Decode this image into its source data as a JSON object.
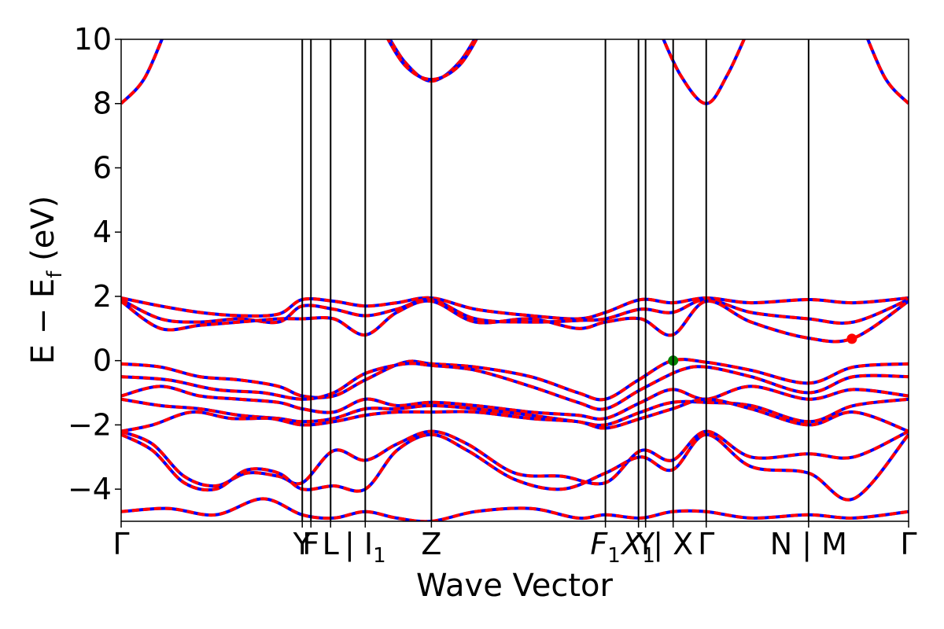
{
  "chart_data": {
    "type": "line",
    "title": "",
    "xlabel": "Wave Vector",
    "ylabel": {
      "main": "E − E",
      "subscript": "f",
      "unit": " (eV)"
    },
    "ylim": [
      -5,
      10
    ],
    "xlim": [
      0,
      1
    ],
    "yticks": [
      -4,
      -2,
      0,
      2,
      4,
      6,
      8,
      10
    ],
    "yticklabels": [
      "−4",
      "−2",
      "0",
      "2",
      "4",
      "6",
      "8",
      "10"
    ],
    "kpath": [
      {
        "x": 0.0,
        "label": "Γ"
      },
      {
        "x": 0.23,
        "label": "Y"
      },
      {
        "x": 0.241,
        "label": "F"
      },
      {
        "x": 0.266,
        "label": "L"
      },
      {
        "x": 0.31,
        "label": "| I",
        "sub": "1"
      },
      {
        "x": 0.394,
        "label": "Z"
      },
      {
        "x": 0.615,
        "label": "F",
        "sub": "1",
        "italic": true
      },
      {
        "x": 0.657,
        "label": "X",
        "sub": "1",
        "italic": true
      },
      {
        "x": 0.666,
        "label": "Y"
      },
      {
        "x": 0.701,
        "label": "| X"
      },
      {
        "x": 0.743,
        "label": "Γ"
      },
      {
        "x": 0.873,
        "label": "N | M"
      },
      {
        "x": 1.0,
        "label": "Γ"
      }
    ],
    "series_style": {
      "spin_up_color": "#0000ff",
      "spin_down_color": "#ff0000",
      "spin_down_dash": "dashed"
    },
    "bands": [
      [
        [
          0,
          -0.1
        ],
        [
          0.05,
          -0.2
        ],
        [
          0.1,
          -0.5
        ],
        [
          0.15,
          -0.6
        ],
        [
          0.2,
          -0.8
        ],
        [
          0.23,
          -1.1
        ],
        [
          0.27,
          -1.1
        ],
        [
          0.31,
          -0.6
        ],
        [
          0.36,
          -0.05
        ],
        [
          0.394,
          -0.1
        ],
        [
          0.45,
          -0.2
        ],
        [
          0.52,
          -0.5
        ],
        [
          0.58,
          -1.0
        ],
        [
          0.615,
          -1.2
        ],
        [
          0.657,
          -0.6
        ],
        [
          0.7,
          0.0
        ],
        [
          0.743,
          -0.05
        ],
        [
          0.8,
          -0.3
        ],
        [
          0.873,
          -0.7
        ],
        [
          0.93,
          -0.2
        ],
        [
          1.0,
          -0.1
        ]
      ],
      [
        [
          0,
          -0.5
        ],
        [
          0.06,
          -0.6
        ],
        [
          0.12,
          -0.9
        ],
        [
          0.18,
          -1.0
        ],
        [
          0.23,
          -1.2
        ],
        [
          0.27,
          -1.0
        ],
        [
          0.31,
          -0.4
        ],
        [
          0.36,
          -0.1
        ],
        [
          0.394,
          -0.15
        ],
        [
          0.45,
          -0.3
        ],
        [
          0.52,
          -0.8
        ],
        [
          0.58,
          -1.3
        ],
        [
          0.615,
          -1.5
        ],
        [
          0.66,
          -0.9
        ],
        [
          0.71,
          -0.3
        ],
        [
          0.743,
          -0.2
        ],
        [
          0.8,
          -0.5
        ],
        [
          0.873,
          -1.0
        ],
        [
          0.93,
          -0.5
        ],
        [
          1.0,
          -0.5
        ]
      ],
      [
        [
          0,
          -1.1
        ],
        [
          0.05,
          -0.8
        ],
        [
          0.1,
          -1.1
        ],
        [
          0.15,
          -1.2
        ],
        [
          0.2,
          -1.3
        ],
        [
          0.23,
          -1.5
        ],
        [
          0.27,
          -1.6
        ],
        [
          0.31,
          -1.2
        ],
        [
          0.35,
          -1.4
        ],
        [
          0.394,
          -1.3
        ],
        [
          0.45,
          -1.4
        ],
        [
          0.52,
          -1.6
        ],
        [
          0.58,
          -1.7
        ],
        [
          0.615,
          -1.8
        ],
        [
          0.66,
          -1.3
        ],
        [
          0.7,
          -0.9
        ],
        [
          0.743,
          -1.2
        ],
        [
          0.8,
          -0.8
        ],
        [
          0.873,
          -1.2
        ],
        [
          0.93,
          -0.9
        ],
        [
          1.0,
          -1.1
        ]
      ],
      [
        [
          0,
          -1.2
        ],
        [
          0.05,
          -1.4
        ],
        [
          0.1,
          -1.5
        ],
        [
          0.15,
          -1.7
        ],
        [
          0.2,
          -1.8
        ],
        [
          0.23,
          -1.9
        ],
        [
          0.27,
          -1.8
        ],
        [
          0.31,
          -1.5
        ],
        [
          0.35,
          -1.5
        ],
        [
          0.394,
          -1.4
        ],
        [
          0.45,
          -1.5
        ],
        [
          0.52,
          -1.7
        ],
        [
          0.58,
          -1.9
        ],
        [
          0.615,
          -2.0
        ],
        [
          0.66,
          -1.6
        ],
        [
          0.7,
          -1.3
        ],
        [
          0.743,
          -1.3
        ],
        [
          0.8,
          -1.4
        ],
        [
          0.873,
          -1.9
        ],
        [
          0.93,
          -1.4
        ],
        [
          1.0,
          -1.2
        ]
      ],
      [
        [
          0,
          -2.2
        ],
        [
          0.04,
          -2.0
        ],
        [
          0.09,
          -1.6
        ],
        [
          0.14,
          -1.8
        ],
        [
          0.19,
          -1.8
        ],
        [
          0.23,
          -2.0
        ],
        [
          0.27,
          -1.9
        ],
        [
          0.31,
          -1.7
        ],
        [
          0.35,
          -1.6
        ],
        [
          0.394,
          -1.6
        ],
        [
          0.45,
          -1.6
        ],
        [
          0.52,
          -1.8
        ],
        [
          0.58,
          -1.9
        ],
        [
          0.615,
          -2.1
        ],
        [
          0.66,
          -1.8
        ],
        [
          0.7,
          -1.5
        ],
        [
          0.743,
          -1.2
        ],
        [
          0.8,
          -1.5
        ],
        [
          0.873,
          -2.0
        ],
        [
          0.93,
          -1.6
        ],
        [
          1.0,
          -2.2
        ]
      ],
      [
        [
          0,
          -2.2
        ],
        [
          0.04,
          -2.6
        ],
        [
          0.08,
          -3.6
        ],
        [
          0.12,
          -3.9
        ],
        [
          0.16,
          -3.5
        ],
        [
          0.2,
          -3.6
        ],
        [
          0.23,
          -3.8
        ],
        [
          0.27,
          -2.8
        ],
        [
          0.31,
          -3.1
        ],
        [
          0.35,
          -2.6
        ],
        [
          0.394,
          -2.2
        ],
        [
          0.44,
          -2.6
        ],
        [
          0.5,
          -3.5
        ],
        [
          0.56,
          -3.6
        ],
        [
          0.615,
          -3.8
        ],
        [
          0.66,
          -2.8
        ],
        [
          0.7,
          -3.1
        ],
        [
          0.743,
          -2.2
        ],
        [
          0.8,
          -3.0
        ],
        [
          0.873,
          -2.9
        ],
        [
          0.93,
          -3.0
        ],
        [
          1.0,
          -2.2
        ]
      ],
      [
        [
          0,
          -2.3
        ],
        [
          0.04,
          -2.8
        ],
        [
          0.08,
          -3.8
        ],
        [
          0.12,
          -4.0
        ],
        [
          0.16,
          -3.4
        ],
        [
          0.2,
          -3.5
        ],
        [
          0.23,
          -4.0
        ],
        [
          0.27,
          -3.9
        ],
        [
          0.31,
          -4.0
        ],
        [
          0.35,
          -2.8
        ],
        [
          0.394,
          -2.3
        ],
        [
          0.44,
          -2.8
        ],
        [
          0.5,
          -3.7
        ],
        [
          0.56,
          -4.0
        ],
        [
          0.615,
          -3.5
        ],
        [
          0.66,
          -3.0
        ],
        [
          0.7,
          -3.4
        ],
        [
          0.743,
          -2.3
        ],
        [
          0.8,
          -3.3
        ],
        [
          0.873,
          -3.5
        ],
        [
          0.93,
          -4.3
        ],
        [
          1.0,
          -2.3
        ]
      ],
      [
        [
          0,
          -4.7
        ],
        [
          0.06,
          -4.6
        ],
        [
          0.12,
          -4.8
        ],
        [
          0.18,
          -4.3
        ],
        [
          0.23,
          -4.8
        ],
        [
          0.27,
          -4.9
        ],
        [
          0.31,
          -4.7
        ],
        [
          0.35,
          -4.9
        ],
        [
          0.394,
          -5.0
        ],
        [
          0.45,
          -4.7
        ],
        [
          0.52,
          -4.6
        ],
        [
          0.58,
          -4.9
        ],
        [
          0.615,
          -4.8
        ],
        [
          0.66,
          -4.9
        ],
        [
          0.7,
          -4.7
        ],
        [
          0.743,
          -4.7
        ],
        [
          0.8,
          -4.9
        ],
        [
          0.873,
          -4.8
        ],
        [
          0.93,
          -4.9
        ],
        [
          1.0,
          -4.7
        ]
      ],
      [
        [
          0,
          1.95
        ],
        [
          0.05,
          1.7
        ],
        [
          0.1,
          1.5
        ],
        [
          0.15,
          1.4
        ],
        [
          0.2,
          1.45
        ],
        [
          0.23,
          1.9
        ],
        [
          0.27,
          1.85
        ],
        [
          0.31,
          1.7
        ],
        [
          0.35,
          1.8
        ],
        [
          0.394,
          1.95
        ],
        [
          0.45,
          1.6
        ],
        [
          0.52,
          1.4
        ],
        [
          0.58,
          1.3
        ],
        [
          0.615,
          1.5
        ],
        [
          0.66,
          1.9
        ],
        [
          0.7,
          1.8
        ],
        [
          0.743,
          1.95
        ],
        [
          0.8,
          1.8
        ],
        [
          0.873,
          1.9
        ],
        [
          0.93,
          1.8
        ],
        [
          1.0,
          1.95
        ]
      ],
      [
        [
          0,
          1.9
        ],
        [
          0.05,
          1.3
        ],
        [
          0.1,
          1.2
        ],
        [
          0.15,
          1.3
        ],
        [
          0.2,
          1.2
        ],
        [
          0.23,
          1.7
        ],
        [
          0.27,
          1.6
        ],
        [
          0.31,
          1.4
        ],
        [
          0.35,
          1.6
        ],
        [
          0.394,
          1.9
        ],
        [
          0.45,
          1.3
        ],
        [
          0.52,
          1.2
        ],
        [
          0.58,
          1.25
        ],
        [
          0.615,
          1.3
        ],
        [
          0.66,
          1.6
        ],
        [
          0.7,
          1.5
        ],
        [
          0.743,
          1.9
        ],
        [
          0.8,
          1.5
        ],
        [
          0.873,
          1.3
        ],
        [
          0.93,
          1.2
        ],
        [
          1.0,
          1.9
        ]
      ],
      [
        [
          0,
          1.85
        ],
        [
          0.05,
          1.0
        ],
        [
          0.1,
          1.1
        ],
        [
          0.15,
          1.2
        ],
        [
          0.2,
          1.3
        ],
        [
          0.23,
          1.3
        ],
        [
          0.27,
          1.3
        ],
        [
          0.31,
          0.8
        ],
        [
          0.35,
          1.5
        ],
        [
          0.394,
          1.85
        ],
        [
          0.45,
          1.2
        ],
        [
          0.52,
          1.3
        ],
        [
          0.58,
          1.0
        ],
        [
          0.615,
          1.2
        ],
        [
          0.66,
          1.3
        ],
        [
          0.7,
          0.8
        ],
        [
          0.743,
          1.85
        ],
        [
          0.8,
          1.2
        ],
        [
          0.873,
          0.7
        ],
        [
          0.93,
          0.7
        ],
        [
          1.0,
          1.85
        ]
      ],
      [
        [
          0,
          8.0
        ],
        [
          0.03,
          8.8
        ],
        [
          0.06,
          10.5
        ]
      ],
      [
        [
          0.33,
          10.5
        ],
        [
          0.36,
          9.3
        ],
        [
          0.394,
          8.7
        ],
        [
          0.43,
          9.3
        ],
        [
          0.46,
          10.5
        ]
      ],
      [
        [
          0.33,
          10.4
        ],
        [
          0.36,
          9.2
        ],
        [
          0.394,
          8.75
        ],
        [
          0.43,
          9.2
        ],
        [
          0.46,
          10.4
        ]
      ],
      [
        [
          0.68,
          10.5
        ],
        [
          0.71,
          8.9
        ],
        [
          0.743,
          8.0
        ],
        [
          0.77,
          8.9
        ],
        [
          0.8,
          10.5
        ]
      ],
      [
        [
          0.94,
          10.5
        ],
        [
          0.97,
          8.8
        ],
        [
          1.0,
          8.0
        ]
      ]
    ],
    "markers": [
      {
        "x": 0.701,
        "y": 0.0,
        "color": "#008000",
        "name": "vbm-marker"
      },
      {
        "x": 0.928,
        "y": 0.68,
        "color": "#ff0000",
        "name": "cbm-marker"
      }
    ]
  }
}
